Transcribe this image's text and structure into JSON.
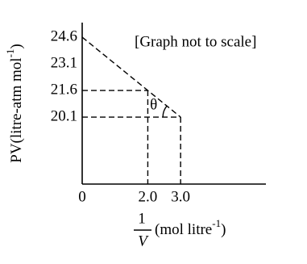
{
  "chart_data": {
    "type": "line",
    "annotation": "[Graph not to scale]",
    "angle_label": "θ",
    "y_label": {
      "text": "PV(litre-atm mol",
      "sup": "-1",
      "end": ")"
    },
    "x_label": {
      "numerator": "1",
      "denominator": "V",
      "text": "(mol litre",
      "sup": "-1",
      "end": ")"
    },
    "x": [
      0,
      2.0,
      3.0
    ],
    "values": [
      24.6,
      21.6,
      20.1
    ],
    "color": "#000000",
    "xlim": [
      0,
      5.6
    ],
    "ylim": [
      16.33,
      25.42
    ],
    "xticks": [
      0,
      {
        "value": 2,
        "label": "2.0"
      },
      {
        "value": 3,
        "label": "3.0"
      }
    ],
    "yticks": [
      24.6,
      23.1,
      21.6,
      20.1
    ],
    "grid": false
  }
}
